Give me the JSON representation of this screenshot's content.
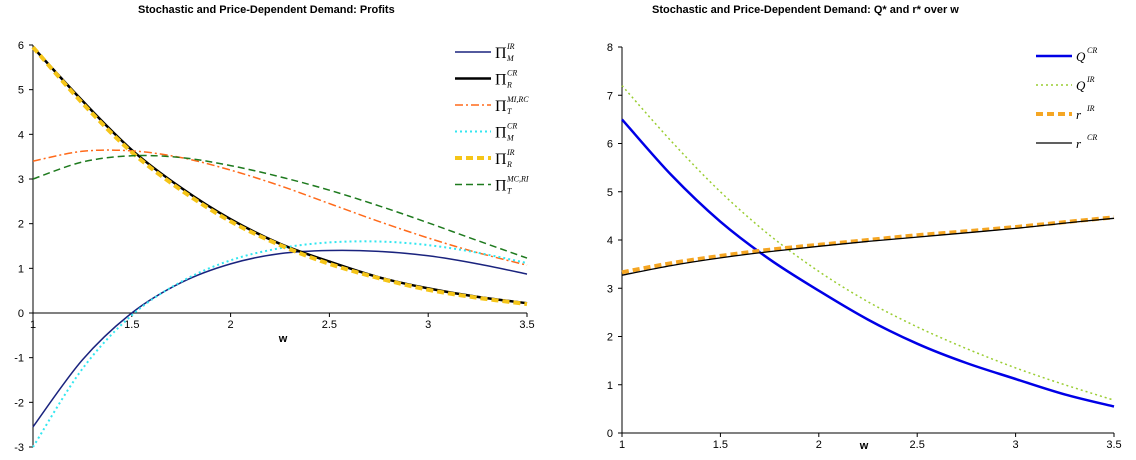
{
  "chart_data": [
    {
      "type": "line",
      "title": "Stochastic and Price-Dependent Demand: Profits",
      "xlabel": "w",
      "ylabel": "",
      "xlim": [
        1,
        3.5
      ],
      "ylim": [
        -3,
        6
      ],
      "xticks": [
        "1",
        "1.5",
        "2",
        "2.5",
        "3",
        "3.5"
      ],
      "yticks": [
        "-3",
        "-2",
        "-1",
        "0",
        "1",
        "2",
        "3",
        "4",
        "5",
        "6"
      ],
      "grid": false,
      "legend_position": "right",
      "series": [
        {
          "name": "Π_M^IR",
          "base": "Π",
          "sub": "M",
          "sup": "IR",
          "color": "#1a237e",
          "style": "solid",
          "width": 1.5,
          "x": [
            1,
            1.25,
            1.5,
            1.75,
            2,
            2.25,
            2.5,
            2.75,
            3,
            3.25,
            3.5
          ],
          "y": [
            -2.55,
            -1.05,
            0.0,
            0.68,
            1.1,
            1.33,
            1.4,
            1.38,
            1.28,
            1.1,
            0.87
          ]
        },
        {
          "name": "Π_R^CR",
          "base": "Π",
          "sub": "R",
          "sup": "CR",
          "color": "#000000",
          "style": "solid",
          "width": 2.5,
          "x": [
            1,
            1.25,
            1.5,
            1.75,
            2,
            2.25,
            2.5,
            2.75,
            3,
            3.25,
            3.5
          ],
          "y": [
            5.95,
            4.75,
            3.65,
            2.8,
            2.1,
            1.55,
            1.15,
            0.8,
            0.55,
            0.36,
            0.22
          ]
        },
        {
          "name": "Π_T^MI,RC",
          "base": "Π",
          "sub": "T",
          "sup": "MI,RC",
          "color": "#ff6a1a",
          "style": "dashdot",
          "width": 1.5,
          "x": [
            1,
            1.25,
            1.5,
            1.75,
            2,
            2.25,
            2.5,
            2.75,
            3,
            3.25,
            3.5
          ],
          "y": [
            3.4,
            3.62,
            3.63,
            3.48,
            3.2,
            2.85,
            2.45,
            2.05,
            1.68,
            1.35,
            1.07
          ]
        },
        {
          "name": "Π_M^CR",
          "base": "Π",
          "sub": "M",
          "sup": "CR",
          "color": "#33e6f0",
          "style": "dotted",
          "width": 2,
          "x": [
            1,
            1.25,
            1.5,
            1.75,
            2,
            2.25,
            2.5,
            2.75,
            3,
            3.25,
            3.5
          ],
          "y": [
            -3.0,
            -1.25,
            -0.05,
            0.7,
            1.18,
            1.45,
            1.58,
            1.6,
            1.52,
            1.35,
            1.12
          ]
        },
        {
          "name": "Π_R^IR",
          "base": "Π",
          "sub": "R",
          "sup": "IR",
          "color": "#f5c518",
          "style": "dashed",
          "width": 4,
          "x": [
            1,
            1.25,
            1.5,
            1.75,
            2,
            2.25,
            2.5,
            2.75,
            3,
            3.25,
            3.5
          ],
          "y": [
            5.95,
            4.7,
            3.6,
            2.75,
            2.05,
            1.52,
            1.1,
            0.78,
            0.52,
            0.34,
            0.2
          ]
        },
        {
          "name": "Π_T^MC,RI",
          "base": "Π",
          "sub": "T",
          "sup": "MC,RI",
          "color": "#1e7a1e",
          "style": "dashed",
          "width": 1.5,
          "x": [
            1,
            1.25,
            1.5,
            1.75,
            2,
            2.25,
            2.5,
            2.75,
            3,
            3.25,
            3.5
          ],
          "y": [
            3.0,
            3.38,
            3.52,
            3.48,
            3.3,
            3.05,
            2.75,
            2.4,
            2.02,
            1.62,
            1.23
          ]
        }
      ]
    },
    {
      "type": "line",
      "title": "Stochastic and Price-Dependent Demand: Q* and r* over w",
      "xlabel": "w",
      "ylabel": "",
      "xlim": [
        1,
        3.5
      ],
      "ylim": [
        0,
        8
      ],
      "xticks": [
        "1",
        "1.5",
        "2",
        "2.5",
        "3",
        "3.5"
      ],
      "yticks": [
        "0",
        "1",
        "2",
        "3",
        "4",
        "5",
        "6",
        "7",
        "8"
      ],
      "grid": false,
      "legend_position": "right",
      "series": [
        {
          "name": "Q^CR",
          "base": "Q",
          "sub": "",
          "sup": "CR",
          "color": "#0000e6",
          "style": "solid",
          "width": 2.5,
          "x": [
            1,
            1.25,
            1.5,
            1.75,
            2,
            2.25,
            2.5,
            2.75,
            3,
            3.25,
            3.5
          ],
          "y": [
            6.5,
            5.35,
            4.38,
            3.6,
            2.95,
            2.35,
            1.85,
            1.45,
            1.12,
            0.8,
            0.55
          ]
        },
        {
          "name": "Q^IR",
          "base": "Q",
          "sub": "",
          "sup": "IR",
          "color": "#9acd32",
          "style": "dotted",
          "width": 1.5,
          "x": [
            1,
            1.25,
            1.5,
            1.75,
            2,
            2.25,
            2.5,
            2.75,
            3,
            3.25,
            3.5
          ],
          "y": [
            7.2,
            6.05,
            5.0,
            4.1,
            3.35,
            2.72,
            2.2,
            1.75,
            1.35,
            1.0,
            0.68
          ]
        },
        {
          "name": "r^IR",
          "base": "r",
          "sub": "",
          "sup": "IR",
          "color": "#f5a623",
          "style": "dashed",
          "width": 4,
          "x": [
            1,
            1.25,
            1.5,
            1.75,
            2,
            2.25,
            2.5,
            2.75,
            3,
            3.25,
            3.5
          ],
          "y": [
            3.33,
            3.52,
            3.67,
            3.8,
            3.9,
            4.0,
            4.1,
            4.18,
            4.27,
            4.37,
            4.47
          ]
        },
        {
          "name": "r^CR",
          "base": "r",
          "sub": "",
          "sup": "CR",
          "color": "#000000",
          "style": "solid",
          "width": 1.3,
          "x": [
            1,
            1.25,
            1.5,
            1.75,
            2,
            2.25,
            2.5,
            2.75,
            3,
            3.25,
            3.5
          ],
          "y": [
            3.27,
            3.47,
            3.63,
            3.76,
            3.87,
            3.97,
            4.06,
            4.15,
            4.24,
            4.35,
            4.45
          ]
        }
      ]
    }
  ]
}
